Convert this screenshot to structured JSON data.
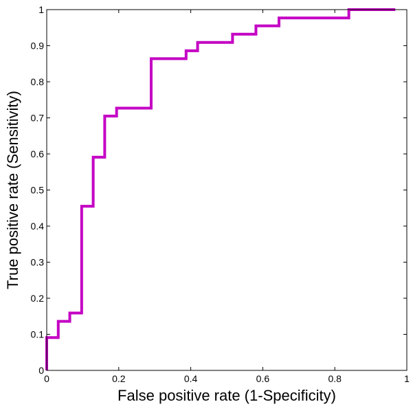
{
  "chart_data": {
    "type": "line",
    "title": "",
    "xlabel": "False positive rate (1-Specificity)",
    "ylabel": "True positive rate (Sensitivity)",
    "xlim": [
      0,
      1
    ],
    "ylim": [
      0,
      1
    ],
    "x_ticks": [
      0,
      0.2,
      0.4,
      0.6,
      0.8,
      1
    ],
    "x_tick_labels": [
      "0",
      "0.2",
      "0.4",
      "0.6",
      "0.8",
      "1"
    ],
    "y_ticks": [
      0,
      0.1,
      0.2,
      0.3,
      0.4,
      0.5,
      0.6,
      0.7,
      0.8,
      0.9,
      1
    ],
    "y_tick_labels": [
      "0",
      "0.1",
      "0.2",
      "0.3",
      "0.4",
      "0.5",
      "0.6",
      "0.7",
      "0.8",
      "0.9",
      "1"
    ],
    "grid": false,
    "legend": "none",
    "line_color": "#c400c4",
    "series": [
      {
        "x": [
          0,
          0,
          0.032,
          0.032,
          0.064,
          0.064,
          0.097,
          0.097,
          0.129,
          0.129,
          0.161,
          0.161,
          0.194,
          0.194,
          0.29,
          0.29,
          0.387,
          0.387,
          0.419,
          0.419,
          0.516,
          0.516,
          0.581,
          0.581,
          0.645,
          0.645,
          0.839,
          0.839,
          0.968
        ],
        "y": [
          0,
          0.091,
          0.091,
          0.136,
          0.136,
          0.159,
          0.159,
          0.455,
          0.455,
          0.591,
          0.591,
          0.705,
          0.705,
          0.727,
          0.727,
          0.864,
          0.864,
          0.886,
          0.886,
          0.909,
          0.909,
          0.932,
          0.932,
          0.955,
          0.955,
          0.977,
          0.977,
          1.0,
          1.0
        ]
      }
    ]
  }
}
